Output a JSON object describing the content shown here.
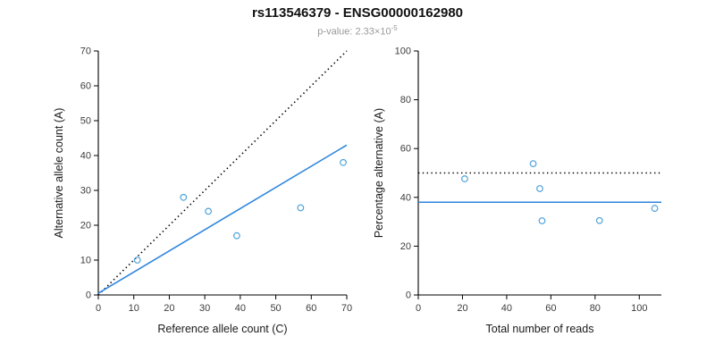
{
  "header": {
    "title": "rs113546379 - ENSG00000162980",
    "pvalue_base": "p-value: 2.33×10",
    "pvalue_exp": "-5"
  },
  "colors": {
    "point": "#4DA3D9",
    "trend_line": "#2E86DE",
    "reference_line": "#000000",
    "axis": "#000000",
    "tick_label": "#3d3d3d",
    "axis_label": "#1a1a1a",
    "title": "#111111",
    "subtitle": "#999999"
  },
  "chart_data": [
    {
      "type": "scatter",
      "xlabel": "Reference allele count (C)",
      "ylabel": "Alternative allele count (A)",
      "xlim": [
        0,
        70
      ],
      "ylim": [
        0,
        70
      ],
      "xticks": [
        0,
        10,
        20,
        30,
        40,
        50,
        60,
        70
      ],
      "yticks": [
        0,
        10,
        20,
        30,
        40,
        50,
        60,
        70
      ],
      "points": [
        [
          11,
          10
        ],
        [
          24,
          28
        ],
        [
          31,
          24
        ],
        [
          39,
          17
        ],
        [
          57,
          25
        ],
        [
          69,
          38
        ]
      ],
      "lines": [
        {
          "label": "identity-line",
          "style": "dotted",
          "color": "#000000",
          "x": [
            0,
            70
          ],
          "y": [
            0,
            70
          ]
        },
        {
          "label": "regression-line",
          "style": "solid",
          "color": "#2E86DE",
          "x": [
            0,
            70
          ],
          "y": [
            0.5,
            43
          ]
        }
      ],
      "legend": "none",
      "grid": false
    },
    {
      "type": "scatter",
      "xlabel": "Total number of reads",
      "ylabel": "Percentage alternative (A)",
      "xlim": [
        0,
        110
      ],
      "ylim": [
        0,
        100
      ],
      "xticks": [
        0,
        20,
        40,
        60,
        80,
        100
      ],
      "yticks": [
        0,
        20,
        40,
        60,
        80,
        100
      ],
      "points": [
        [
          21,
          47.6
        ],
        [
          52,
          53.8
        ],
        [
          55,
          43.6
        ],
        [
          56,
          30.4
        ],
        [
          82,
          30.5
        ],
        [
          107,
          35.5
        ]
      ],
      "lines": [
        {
          "label": "expected-50pct-line",
          "style": "dotted",
          "color": "#000000",
          "x": [
            0,
            110
          ],
          "y": [
            50,
            50
          ]
        },
        {
          "label": "mean-percentage-line",
          "style": "solid",
          "color": "#2E86DE",
          "x": [
            0,
            110
          ],
          "y": [
            38,
            38
          ]
        }
      ],
      "legend": "none",
      "grid": false
    }
  ]
}
